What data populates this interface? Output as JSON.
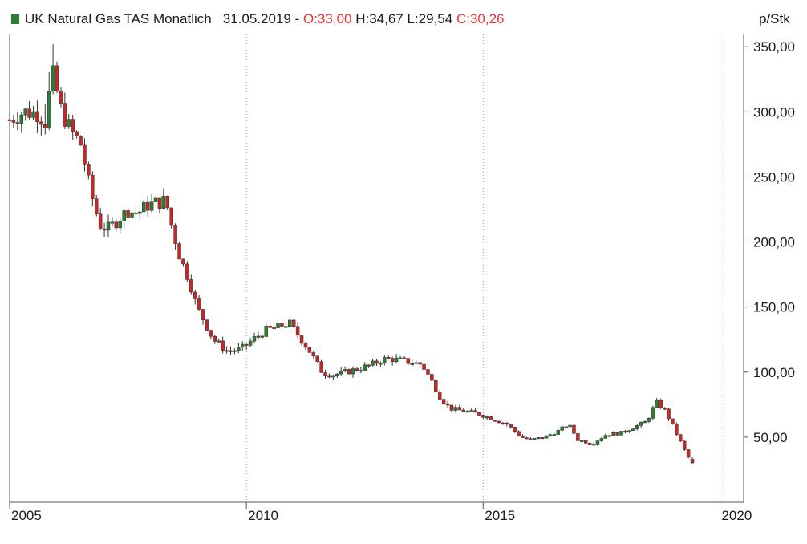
{
  "header": {
    "title": "UK Natural Gas TAS Monatlich",
    "date": "31.05.2019",
    "sep": "-",
    "open": "O:33,00",
    "high": "H:34,67",
    "low": "L:29,54",
    "close": "C:30,26"
  },
  "unit": "p/Stk",
  "colors": {
    "up": "#2e7d32",
    "down": "#c62828",
    "grid": "#9e9e9e",
    "axis": "#555555",
    "accent_red": "#e53935"
  },
  "chart_data": {
    "type": "candlestick",
    "title": "UK Natural Gas TAS Monatlich",
    "ylabel": "p/Stk",
    "ylim": [
      0,
      360
    ],
    "xlim": [
      2005.0,
      2020.5
    ],
    "x_ticks": [
      "2005",
      "2010",
      "2015",
      "2020"
    ],
    "y_ticks": [
      "50,00",
      "100,00",
      "150,00",
      "200,00",
      "250,00",
      "300,00",
      "350,00"
    ],
    "grid": "vertical dotted at years",
    "last_bar": {
      "date": "31.05.2019",
      "open": 33.0,
      "high": 34.67,
      "low": 29.54,
      "close": 30.26
    },
    "close_series": {
      "t": [
        2005.0,
        2005.3,
        2005.6,
        2005.75,
        2005.9,
        2006.1,
        2006.3,
        2006.5,
        2006.7,
        2006.9,
        2007.1,
        2007.3,
        2007.5,
        2007.7,
        2007.9,
        2008.1,
        2008.3,
        2008.4,
        2008.6,
        2008.8,
        2008.95,
        2009.1,
        2009.3,
        2009.6,
        2009.9,
        2010.1,
        2010.4,
        2010.7,
        2010.9,
        2011.1,
        2011.3,
        2011.6,
        2011.8,
        2012.0,
        2012.3,
        2012.6,
        2012.9,
        2013.1,
        2013.4,
        2013.7,
        2013.9,
        2014.1,
        2014.3,
        2014.6,
        2014.9,
        2015.2,
        2015.5,
        2015.8,
        2016.0,
        2016.3,
        2016.6,
        2016.8,
        2017.0,
        2017.3,
        2017.6,
        2017.9,
        2018.2,
        2018.45,
        2018.65,
        2018.85,
        2019.05,
        2019.25,
        2019.4
      ],
      "close": [
        294,
        300,
        299,
        292,
        330,
        300,
        285,
        275,
        240,
        213,
        210,
        218,
        224,
        222,
        228,
        230,
        232,
        215,
        188,
        170,
        150,
        140,
        125,
        116,
        118,
        124,
        132,
        135,
        138,
        128,
        118,
        100,
        98,
        99,
        102,
        105,
        110,
        110,
        108,
        106,
        94,
        80,
        72,
        70,
        68,
        64,
        60,
        50,
        48,
        50,
        55,
        60,
        48,
        45,
        52,
        53,
        58,
        62,
        77,
        70,
        55,
        40,
        30
      ]
    }
  }
}
